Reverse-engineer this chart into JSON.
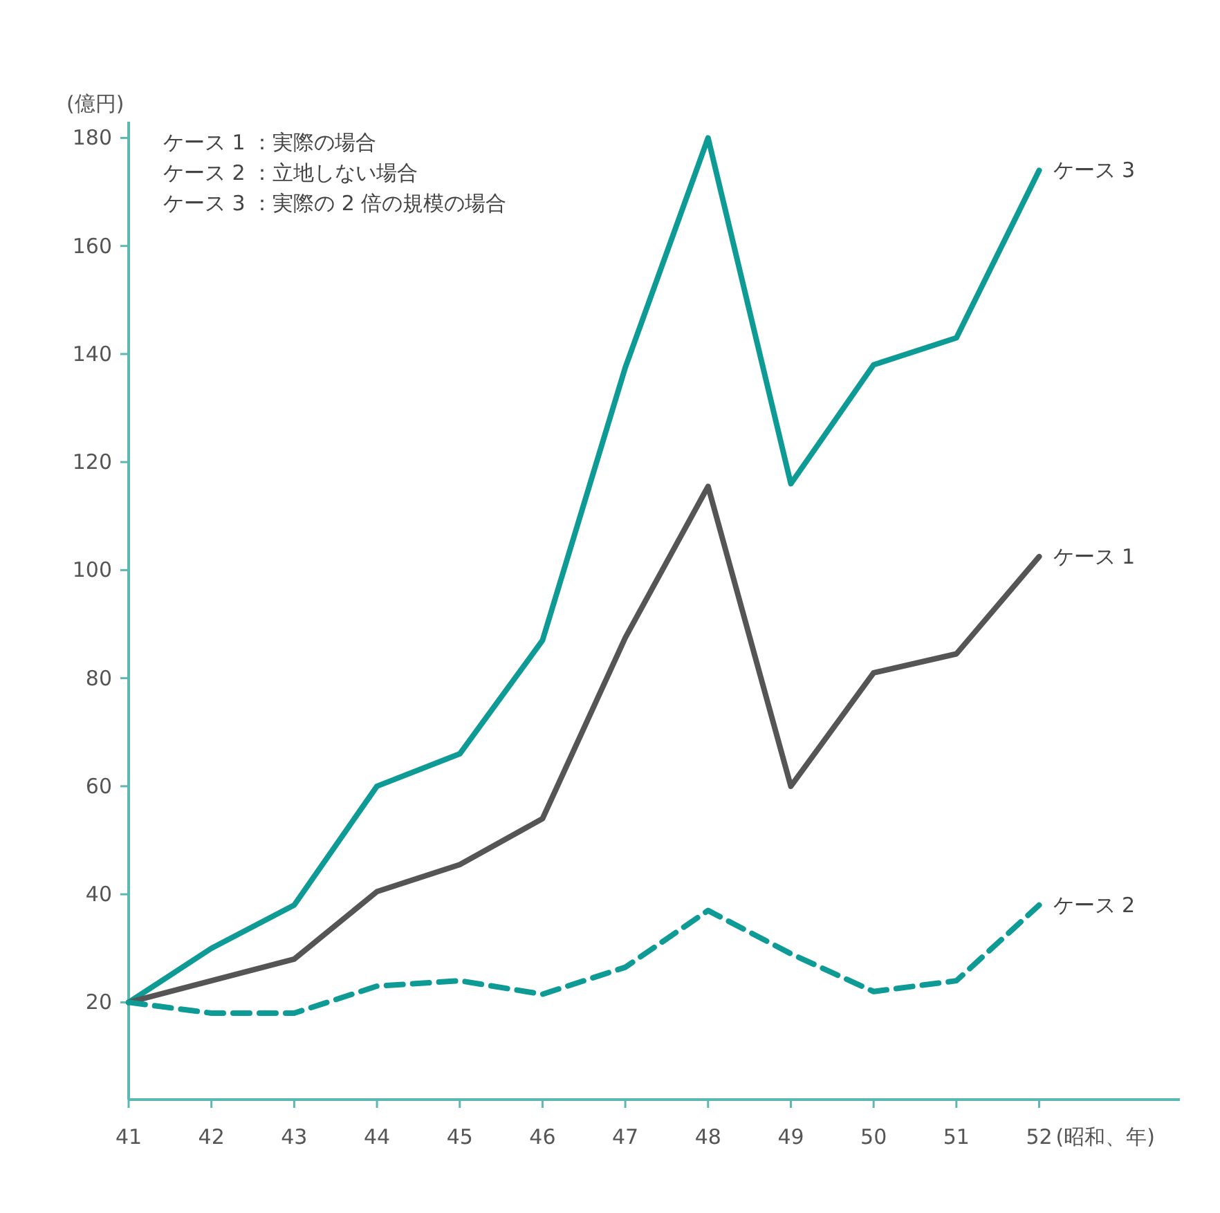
{
  "chart_data": {
    "type": "line",
    "ylabel": "(億円)",
    "xlabel": "(昭和、年)",
    "x": [
      41,
      42,
      43,
      44,
      45,
      46,
      47,
      48,
      49,
      50,
      51,
      52
    ],
    "xlim": [
      41,
      53.7
    ],
    "xticks": [
      41,
      42,
      43,
      44,
      45,
      46,
      47,
      48,
      49,
      50,
      51,
      52
    ],
    "ylim": [
      2,
      183
    ],
    "yticks": [
      20,
      40,
      60,
      80,
      100,
      120,
      140,
      160,
      180
    ],
    "grid": false,
    "legend": false,
    "marker": "none",
    "annotations": [
      "ケース 1 ：実際の場合",
      "ケース 2 ：立地しない場合",
      "ケース 3 ：実際の 2 倍の規模の場合"
    ],
    "series": [
      {
        "name": "ケース 3",
        "color": "#0f9b95",
        "line_style": "solid",
        "values": [
          20,
          30,
          38,
          60,
          66,
          87,
          137.5,
          180,
          116,
          138,
          143,
          174
        ]
      },
      {
        "name": "ケース 1",
        "color": "#555555",
        "line_style": "solid",
        "values": [
          20,
          24,
          28,
          40.5,
          45.5,
          54,
          87.5,
          115.5,
          60,
          81,
          84.5,
          102.5
        ]
      },
      {
        "name": "ケース 2",
        "color": "#0f9b95",
        "line_style": "dashed",
        "values": [
          20,
          18,
          18,
          23,
          24,
          21.5,
          26.5,
          37,
          29,
          22,
          24,
          38
        ]
      }
    ]
  }
}
